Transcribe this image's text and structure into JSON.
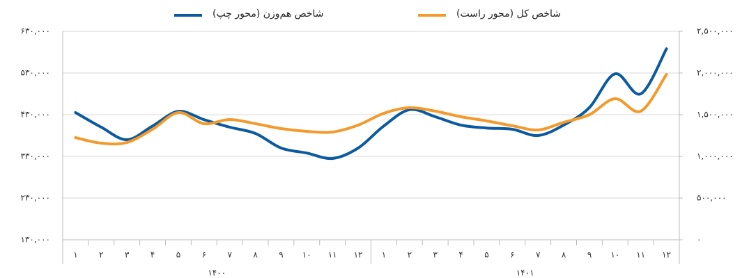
{
  "chart_data": {
    "type": "line",
    "categories": [
      "۱",
      "۲",
      "۳",
      "۴",
      "۵",
      "۶",
      "۷",
      "۸",
      "۹",
      "۱۰",
      "۱۱",
      "۱۲",
      "۱",
      "۲",
      "۳",
      "۴",
      "۵",
      "۶",
      "۷",
      "۸",
      "۹",
      "۱۰",
      "۱۱",
      "۱۲"
    ],
    "groups": [
      "۱۴۰۰",
      "۱۴۰۱"
    ],
    "series": [
      {
        "name": "شاخص هم‌وزن (محور چپ)",
        "color": "#0b5aa0",
        "axis": "y",
        "values": [
          435000,
          400000,
          370000,
          403000,
          438000,
          418000,
          400000,
          385000,
          350000,
          338000,
          325000,
          350000,
          403000,
          442000,
          425000,
          405000,
          398000,
          395000,
          380000,
          405000,
          447000,
          528000,
          480000,
          588000
        ]
      },
      {
        "name": "شاخص کل (محور راست)",
        "color": "#f39a2b",
        "axis": "y2",
        "values": [
          1225000,
          1158000,
          1167000,
          1325000,
          1525000,
          1392000,
          1442000,
          1392000,
          1333000,
          1300000,
          1292000,
          1375000,
          1517000,
          1583000,
          1542000,
          1475000,
          1425000,
          1367000,
          1317000,
          1408000,
          1500000,
          1692000,
          1542000,
          1983000
        ]
      }
    ],
    "ylim": [
      130000,
      630000
    ],
    "yticks": [
      {
        "value": 130000,
        "label": "۱۳۰,۰۰۰"
      },
      {
        "value": 230000,
        "label": "۲۳۰,۰۰۰"
      },
      {
        "value": 330000,
        "label": "۳۳۰,۰۰۰"
      },
      {
        "value": 430000,
        "label": "۴۳۰,۰۰۰"
      },
      {
        "value": 530000,
        "label": "۵۳۰,۰۰۰"
      },
      {
        "value": 630000,
        "label": "۶۳۰,۰۰۰"
      }
    ],
    "y2lim": [
      0,
      2500000
    ],
    "y2ticks": [
      {
        "value": 0,
        "label": "۰"
      },
      {
        "value": 500000,
        "label": "۵۰۰,۰۰۰"
      },
      {
        "value": 1000000,
        "label": "۱,۰۰۰,۰۰۰"
      },
      {
        "value": 1500000,
        "label": "۱,۵۰۰,۰۰۰"
      },
      {
        "value": 2000000,
        "label": "۲,۰۰۰,۰۰۰"
      },
      {
        "value": 2500000,
        "label": "۲,۵۰۰,۰۰۰"
      }
    ],
    "grid": true
  }
}
